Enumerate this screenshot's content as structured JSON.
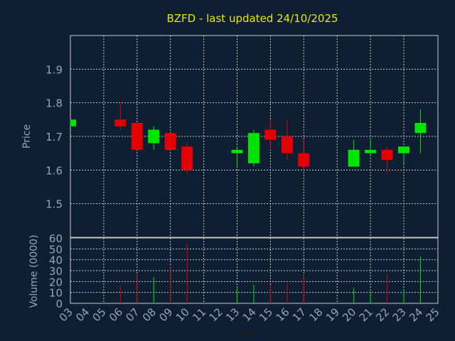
{
  "chart_data": [
    {
      "type": "candlestick",
      "title": "BZFD - last updated 24/10/2025",
      "ylabel": "Price",
      "ylim": [
        1.4,
        2.0
      ],
      "yticks": [
        1.5,
        1.6,
        1.7,
        1.8,
        1.9
      ],
      "ytick_labels": [
        "1.5",
        "1.6",
        "1.7",
        "1.8",
        "1.9"
      ],
      "grid": true,
      "x": [
        "03",
        "06",
        "07",
        "08",
        "09",
        "10",
        "13",
        "14",
        "15",
        "16",
        "17",
        "20",
        "21",
        "22",
        "23",
        "24"
      ],
      "open": [
        1.73,
        1.75,
        1.74,
        1.68,
        1.71,
        1.67,
        1.65,
        1.62,
        1.72,
        1.7,
        1.65,
        1.61,
        1.65,
        1.66,
        1.65,
        1.71
      ],
      "close": [
        1.75,
        1.73,
        1.66,
        1.72,
        1.66,
        1.6,
        1.66,
        1.71,
        1.69,
        1.65,
        1.61,
        1.66,
        1.66,
        1.63,
        1.67,
        1.74
      ],
      "high": [
        1.75,
        1.8,
        1.74,
        1.73,
        1.71,
        1.68,
        1.67,
        1.72,
        1.75,
        1.75,
        1.69,
        1.69,
        1.69,
        1.67,
        1.67,
        1.78
      ],
      "low": [
        1.73,
        1.72,
        1.66,
        1.66,
        1.66,
        1.59,
        1.61,
        1.61,
        1.66,
        1.63,
        1.6,
        1.61,
        1.64,
        1.59,
        1.62,
        1.65
      ]
    },
    {
      "type": "bar",
      "xlabel": "Day",
      "ylabel": "Volume (0000)",
      "ylim": [
        0,
        60
      ],
      "yticks": [
        0,
        10,
        20,
        30,
        40,
        50,
        60
      ],
      "ytick_labels": [
        "0",
        "10",
        "20",
        "30",
        "40",
        "50",
        "60"
      ],
      "grid": true,
      "x": [
        "03",
        "06",
        "07",
        "08",
        "09",
        "10",
        "13",
        "14",
        "15",
        "16",
        "17",
        "20",
        "21",
        "22",
        "23",
        "24"
      ],
      "values": [
        0,
        16,
        26,
        24,
        34,
        55,
        14,
        17,
        17,
        18,
        26,
        14,
        11,
        27,
        13,
        43
      ],
      "up": [
        true,
        false,
        false,
        true,
        false,
        false,
        true,
        true,
        false,
        false,
        false,
        true,
        true,
        false,
        true,
        true
      ]
    }
  ],
  "x_axis": {
    "labels": [
      "03",
      "04",
      "05",
      "06",
      "07",
      "08",
      "09",
      "10",
      "11",
      "12",
      "13",
      "14",
      "15",
      "16",
      "17",
      "18",
      "19",
      "20",
      "21",
      "22",
      "23",
      "24",
      "25"
    ]
  },
  "colors": {
    "background": "#0f1f33",
    "title": "#e8e800",
    "axis_text": "#8fa6bf",
    "grid": "#c8c8c8",
    "up": "#00e400",
    "down": "#e40000"
  }
}
